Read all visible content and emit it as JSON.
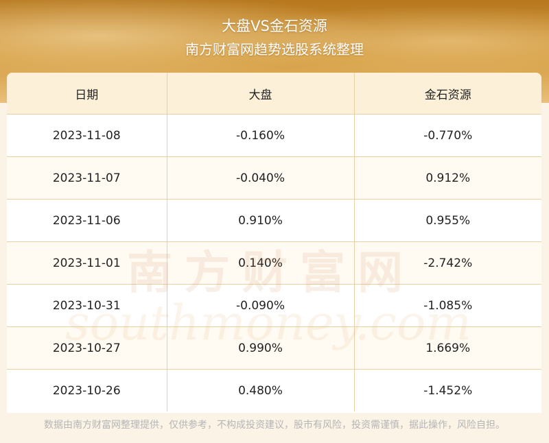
{
  "header": {
    "title": "大盘VS金石资源",
    "subtitle": "南方财富网趋势选股系统整理"
  },
  "table": {
    "columns": [
      "日期",
      "大盘",
      "金石资源"
    ],
    "rows": [
      [
        "2023-11-08",
        "-0.160%",
        "-0.770%"
      ],
      [
        "2023-11-07",
        "-0.040%",
        "0.912%"
      ],
      [
        "2023-11-06",
        "0.910%",
        "0.955%"
      ],
      [
        "2023-11-01",
        "0.140%",
        "-2.742%"
      ],
      [
        "2023-10-31",
        "-0.090%",
        "-1.085%"
      ],
      [
        "2023-10-27",
        "0.990%",
        "1.669%"
      ],
      [
        "2023-10-26",
        "0.480%",
        "-1.452%"
      ]
    ]
  },
  "watermark": {
    "cn": "南方财富网",
    "en": "southmoney.com"
  },
  "footer": {
    "disclaimer": "数据由南方财富网整理提供，仅供参考，不构成投资建议，股市有风险，投资需谨慎，据此操作，风险自担。"
  },
  "colors": {
    "banner": "#c98b2e",
    "header_row": "#fdf0d8",
    "grid": "#e7cfa6",
    "watermark": "#c8864a"
  }
}
